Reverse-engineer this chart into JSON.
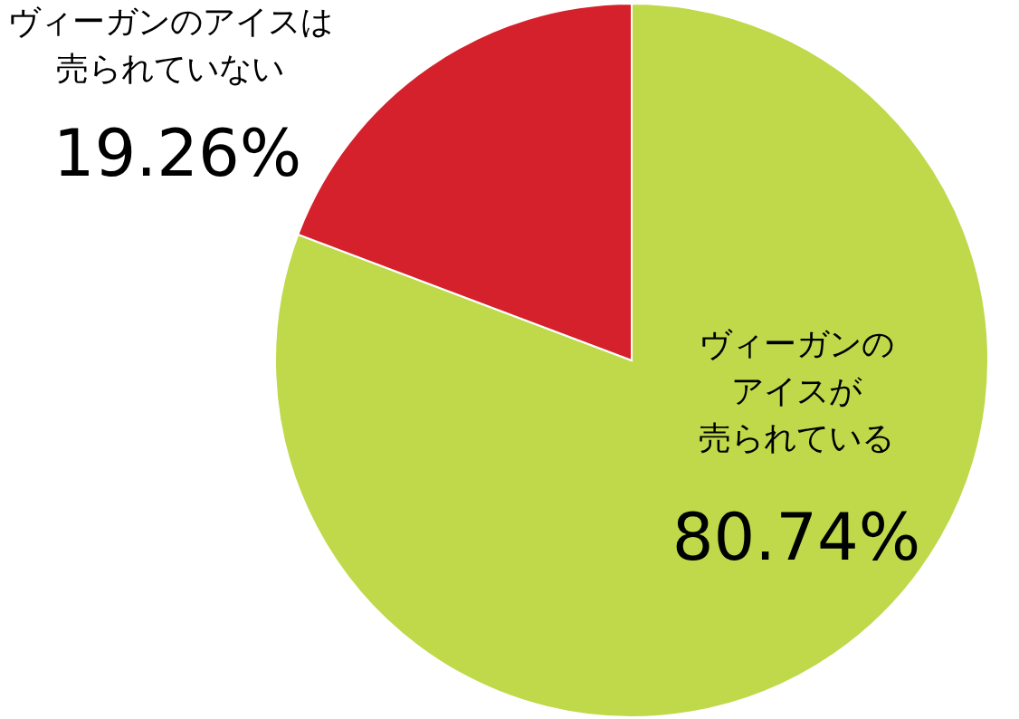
{
  "chart_data": {
    "type": "pie",
    "categories": [
      "ヴィーガンのアイスが売られている",
      "ヴィーガンのアイスは売られていない"
    ],
    "values": [
      80.74,
      19.26
    ],
    "colors": [
      "#bfd94b",
      "#d4212b"
    ],
    "value_labels": [
      "80.74%",
      "19.26%"
    ]
  }
}
